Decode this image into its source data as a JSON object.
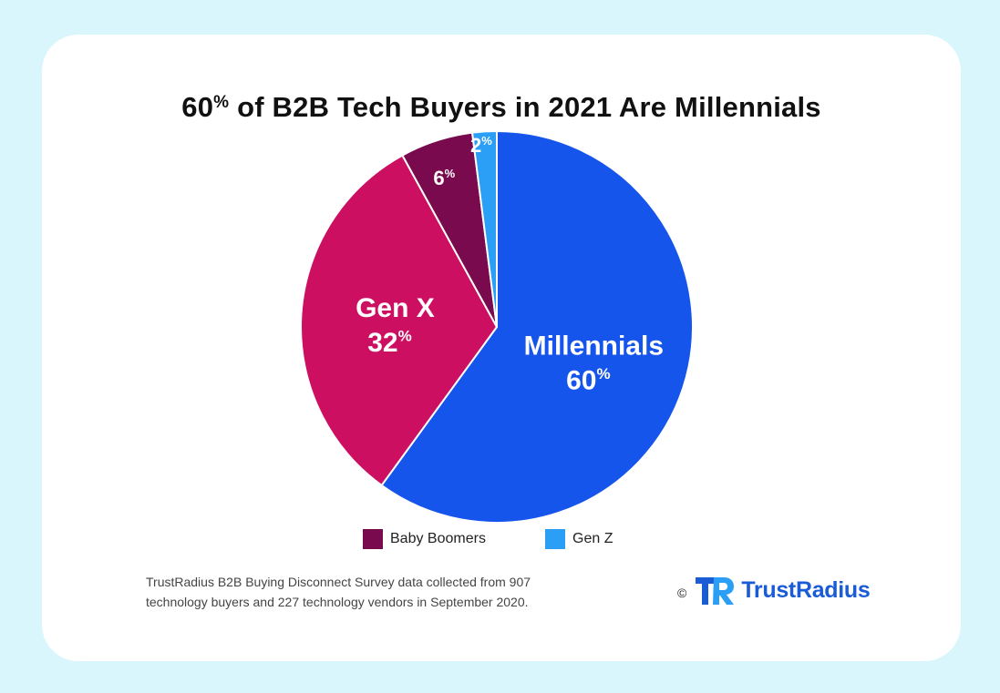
{
  "chart_data": {
    "type": "pie",
    "title": "60% of B2B Tech Buyers in 2021 Are Millennials",
    "title_main": "60",
    "title_pct": "%",
    "title_rest": " of B2B Tech Buyers in 2021 Are Millennials",
    "start_angle_deg": 0,
    "direction": "clockwise",
    "slices": [
      {
        "name": "Millennials",
        "value": 60,
        "label_name": "Millennials",
        "label_value": "60",
        "color": "#1655ec"
      },
      {
        "name": "Gen X",
        "value": 32,
        "label_name": "Gen X",
        "label_value": "32",
        "color": "#cc0f60"
      },
      {
        "name": "Baby Boomers",
        "value": 6,
        "label_name": "",
        "label_value": "6",
        "color": "#7a0a4e"
      },
      {
        "name": "Gen Z",
        "value": 2,
        "label_name": "",
        "label_value": "2",
        "color": "#2b9ff5"
      }
    ],
    "percent_symbol": "%",
    "legend": {
      "placement": "bottom",
      "items": [
        {
          "label": "Baby Boomers",
          "color": "#7a0a4e"
        },
        {
          "label": "Gen Z",
          "color": "#2b9ff5"
        }
      ]
    }
  },
  "footnote": {
    "line1": "TrustRadius B2B Buying Disconnect Survey data collected from 907",
    "line2": "technology buyers and 227 technology vendors in September 2020."
  },
  "brand": {
    "copyright": "©",
    "name": "TrustRadius",
    "logo_icon": "trustradius-logo-icon",
    "color": "#1a5bd6"
  },
  "background": "#d8f6fb"
}
